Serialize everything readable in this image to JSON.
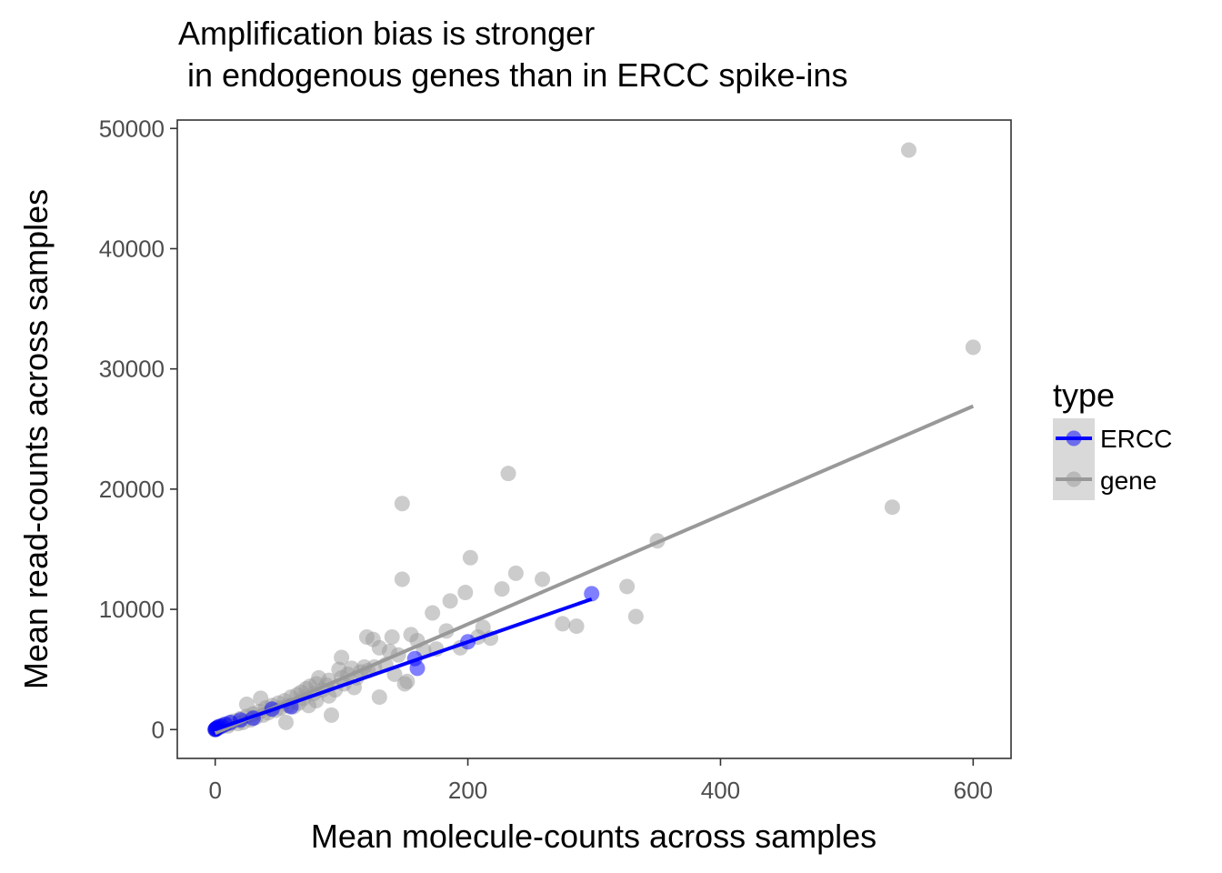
{
  "chart_data": {
    "type": "scatter",
    "title_lines": [
      "Amplification bias is stronger",
      " in endogenous genes than in ERCC spike-ins"
    ],
    "xlabel": "Mean molecule-counts across samples",
    "ylabel": "Mean read-counts across samples",
    "xlim": [
      -30,
      630
    ],
    "ylim": [
      -2400,
      50700
    ],
    "x_ticks": [
      0,
      200,
      400,
      600
    ],
    "y_ticks": [
      0,
      10000,
      20000,
      30000,
      40000,
      50000
    ],
    "grid": false,
    "legend": {
      "title": "type",
      "placement": "right",
      "entries": [
        "ERCC",
        "gene"
      ]
    },
    "series": [
      {
        "name": "ERCC",
        "color": "#0000ff",
        "point_opacity": 0.5,
        "points": [
          [
            0,
            0
          ],
          [
            0.2,
            30
          ],
          [
            0.5,
            60
          ],
          [
            1,
            100
          ],
          [
            2,
            180
          ],
          [
            3,
            250
          ],
          [
            5,
            300
          ],
          [
            8,
            450
          ],
          [
            12,
            600
          ],
          [
            20,
            800
          ],
          [
            30,
            950
          ],
          [
            45,
            1700
          ],
          [
            60,
            1900
          ],
          [
            158,
            5900
          ],
          [
            160,
            5100
          ],
          [
            200,
            7300
          ],
          [
            298,
            11300
          ]
        ],
        "trend": {
          "x": [
            0,
            298
          ],
          "y": [
            0,
            10850
          ]
        }
      },
      {
        "name": "gene",
        "color": "#999999",
        "point_opacity": 0.5,
        "points": [
          [
            0,
            0
          ],
          [
            1,
            50
          ],
          [
            2,
            100
          ],
          [
            3,
            150
          ],
          [
            5,
            250
          ],
          [
            6,
            350
          ],
          [
            8,
            400
          ],
          [
            10,
            300
          ],
          [
            12,
            500
          ],
          [
            15,
            700
          ],
          [
            18,
            500
          ],
          [
            20,
            900
          ],
          [
            22,
            600
          ],
          [
            25,
            1100
          ],
          [
            25,
            2100
          ],
          [
            28,
            800
          ],
          [
            30,
            1300
          ],
          [
            32,
            1000
          ],
          [
            35,
            1500
          ],
          [
            36,
            2600
          ],
          [
            38,
            1200
          ],
          [
            40,
            1800
          ],
          [
            42,
            1400
          ],
          [
            45,
            2000
          ],
          [
            48,
            1600
          ],
          [
            50,
            2200
          ],
          [
            52,
            1800
          ],
          [
            55,
            2400
          ],
          [
            56,
            600
          ],
          [
            58,
            2000
          ],
          [
            60,
            2700
          ],
          [
            62,
            1900
          ],
          [
            65,
            2900
          ],
          [
            66,
            2200
          ],
          [
            68,
            3100
          ],
          [
            70,
            2600
          ],
          [
            72,
            3400
          ],
          [
            74,
            2000
          ],
          [
            75,
            3600
          ],
          [
            78,
            3000
          ],
          [
            80,
            3800
          ],
          [
            80,
            2400
          ],
          [
            82,
            4300
          ],
          [
            85,
            3300
          ],
          [
            88,
            3700
          ],
          [
            90,
            4100
          ],
          [
            90,
            2800
          ],
          [
            92,
            1200
          ],
          [
            95,
            3300
          ],
          [
            98,
            5000
          ],
          [
            100,
            6000
          ],
          [
            100,
            4300
          ],
          [
            102,
            3800
          ],
          [
            105,
            4600
          ],
          [
            108,
            5100
          ],
          [
            110,
            3500
          ],
          [
            112,
            4300
          ],
          [
            115,
            4800
          ],
          [
            118,
            5200
          ],
          [
            120,
            7700
          ],
          [
            121,
            4900
          ],
          [
            125,
            7500
          ],
          [
            126,
            5200
          ],
          [
            130,
            2700
          ],
          [
            130,
            6800
          ],
          [
            135,
            5400
          ],
          [
            138,
            6500
          ],
          [
            140,
            7700
          ],
          [
            142,
            4600
          ],
          [
            145,
            6200
          ],
          [
            148,
            18800
          ],
          [
            148,
            12500
          ],
          [
            150,
            3800
          ],
          [
            152,
            4000
          ],
          [
            155,
            7900
          ],
          [
            160,
            7400
          ],
          [
            165,
            6600
          ],
          [
            172,
            9700
          ],
          [
            175,
            6700
          ],
          [
            183,
            8200
          ],
          [
            186,
            10700
          ],
          [
            194,
            6800
          ],
          [
            198,
            11400
          ],
          [
            202,
            14300
          ],
          [
            208,
            7700
          ],
          [
            212,
            8500
          ],
          [
            218,
            7600
          ],
          [
            227,
            11700
          ],
          [
            232,
            21300
          ],
          [
            238,
            13000
          ],
          [
            259,
            12500
          ],
          [
            275,
            8800
          ],
          [
            286,
            8600
          ],
          [
            326,
            11900
          ],
          [
            333,
            9400
          ],
          [
            350,
            15700
          ],
          [
            536,
            18500
          ],
          [
            549,
            48200
          ],
          [
            600,
            31800
          ]
        ],
        "trend": {
          "x": [
            0,
            600
          ],
          "y": [
            -300,
            26900
          ]
        }
      }
    ]
  }
}
